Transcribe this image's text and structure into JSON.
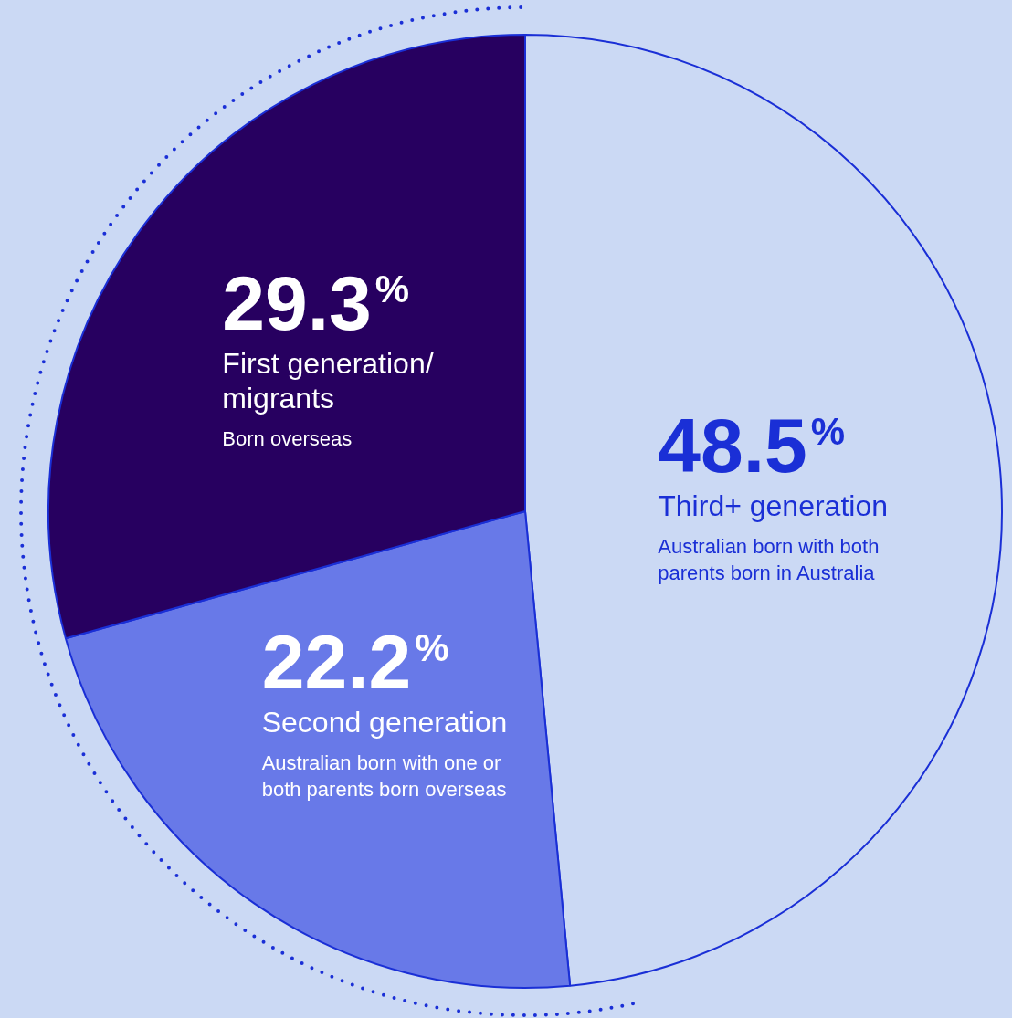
{
  "chart_data": {
    "type": "pie",
    "categories": [
      "Third+ generation",
      "Second generation",
      "First generation/ migrants"
    ],
    "values": [
      48.5,
      22.2,
      29.3
    ],
    "colors": [
      "#cbd9f4",
      "#6879e8",
      "#270060"
    ],
    "value_labels": [
      "48.5%",
      "22.2%",
      "29.3%"
    ],
    "annotations": [
      "Australian born with both parents born in Australia",
      "Australian born with one or both parents born overseas",
      "Born overseas"
    ],
    "legend": false
  }
}
